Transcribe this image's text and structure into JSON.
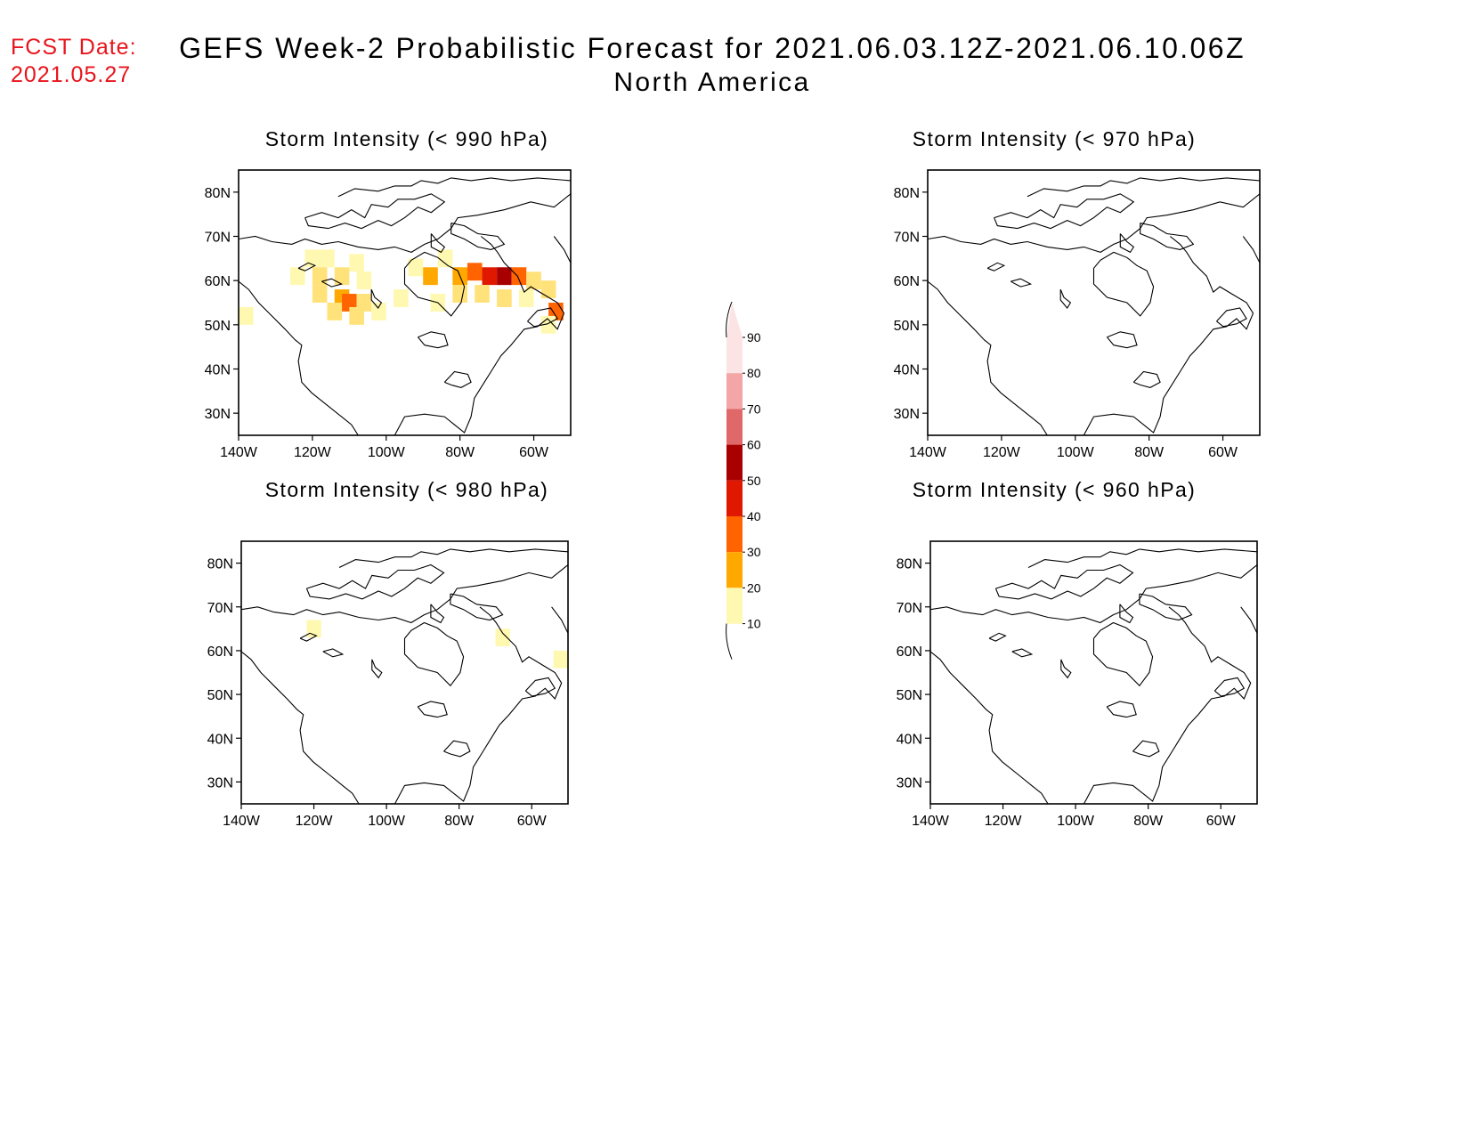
{
  "forecast_date": {
    "label": "FCST Date:",
    "value": "2021.05.27"
  },
  "title": "GEFS Week-2 Probabilistic Forecast for 2021.06.03.12Z-2021.06.10.06Z",
  "subtitle": "North America",
  "colorbar": {
    "levels": [
      "10",
      "20",
      "30",
      "40",
      "50",
      "60",
      "70",
      "80",
      "90"
    ],
    "colors": [
      "#fff8b0",
      "#ffe27a",
      "#ffa800",
      "#ff6400",
      "#e01800",
      "#a80000",
      "#e06868",
      "#f4a6a6",
      "#fde4e4"
    ]
  },
  "chart_data": [
    {
      "type": "heatmap",
      "title": "Storm Intensity (< 990 hPa)",
      "lat_ticks": [
        "80N",
        "70N",
        "60N",
        "50N",
        "40N",
        "30N"
      ],
      "lon_ticks": [
        "140W",
        "120W",
        "100W",
        "80W",
        "60W"
      ],
      "xlim": [
        -140,
        -50
      ],
      "ylim": [
        25,
        85
      ],
      "probability_cells": [
        {
          "lon": -120,
          "lat": 65,
          "value": 15
        },
        {
          "lon": -116,
          "lat": 65,
          "value": 12
        },
        {
          "lon": -108,
          "lat": 64,
          "value": 15
        },
        {
          "lon": -124,
          "lat": 61,
          "value": 15
        },
        {
          "lon": -118,
          "lat": 61,
          "value": 20
        },
        {
          "lon": -112,
          "lat": 61,
          "value": 20
        },
        {
          "lon": -106,
          "lat": 60,
          "value": 15
        },
        {
          "lon": -118,
          "lat": 57,
          "value": 25
        },
        {
          "lon": -112,
          "lat": 56,
          "value": 35
        },
        {
          "lon": -110,
          "lat": 55,
          "value": 45
        },
        {
          "lon": -106,
          "lat": 55,
          "value": 25
        },
        {
          "lon": -114,
          "lat": 53,
          "value": 20
        },
        {
          "lon": -108,
          "lat": 52,
          "value": 20
        },
        {
          "lon": -102,
          "lat": 53,
          "value": 15
        },
        {
          "lon": -96,
          "lat": 56,
          "value": 15
        },
        {
          "lon": -92,
          "lat": 63,
          "value": 15
        },
        {
          "lon": -88,
          "lat": 61,
          "value": 35
        },
        {
          "lon": -84,
          "lat": 65,
          "value": 15
        },
        {
          "lon": -80,
          "lat": 61,
          "value": 30
        },
        {
          "lon": -76,
          "lat": 62,
          "value": 45
        },
        {
          "lon": -72,
          "lat": 61,
          "value": 55
        },
        {
          "lon": -68,
          "lat": 61,
          "value": 60
        },
        {
          "lon": -64,
          "lat": 61,
          "value": 45
        },
        {
          "lon": -60,
          "lat": 60,
          "value": 25
        },
        {
          "lon": -56,
          "lat": 58,
          "value": 20
        },
        {
          "lon": -80,
          "lat": 57,
          "value": 20
        },
        {
          "lon": -74,
          "lat": 57,
          "value": 25
        },
        {
          "lon": -68,
          "lat": 56,
          "value": 20
        },
        {
          "lon": -62,
          "lat": 56,
          "value": 15
        },
        {
          "lon": -86,
          "lat": 55,
          "value": 15
        },
        {
          "lon": -54,
          "lat": 53,
          "value": 40
        },
        {
          "lon": -138,
          "lat": 52,
          "value": 15
        },
        {
          "lon": -56,
          "lat": 50,
          "value": 15
        }
      ]
    },
    {
      "type": "heatmap",
      "title": "Storm Intensity (< 970 hPa)",
      "lat_ticks": [
        "80N",
        "70N",
        "60N",
        "50N",
        "40N",
        "30N"
      ],
      "lon_ticks": [
        "140W",
        "120W",
        "100W",
        "80W",
        "60W"
      ],
      "xlim": [
        -140,
        -50
      ],
      "ylim": [
        25,
        85
      ],
      "probability_cells": []
    },
    {
      "type": "heatmap",
      "title": "Storm Intensity (< 980 hPa)",
      "lat_ticks": [
        "80N",
        "70N",
        "60N",
        "50N",
        "40N",
        "30N"
      ],
      "lon_ticks": [
        "140W",
        "120W",
        "100W",
        "80W",
        "60W"
      ],
      "xlim": [
        -140,
        -50
      ],
      "ylim": [
        25,
        85
      ],
      "probability_cells": [
        {
          "lon": -120,
          "lat": 65,
          "value": 15
        },
        {
          "lon": -68,
          "lat": 63,
          "value": 15
        },
        {
          "lon": -52,
          "lat": 58,
          "value": 15
        }
      ]
    },
    {
      "type": "heatmap",
      "title": "Storm Intensity (< 960 hPa)",
      "lat_ticks": [
        "80N",
        "70N",
        "60N",
        "50N",
        "40N",
        "30N"
      ],
      "lon_ticks": [
        "140W",
        "120W",
        "100W",
        "80W",
        "60W"
      ],
      "xlim": [
        -140,
        -50
      ],
      "ylim": [
        25,
        85
      ],
      "probability_cells": []
    }
  ]
}
